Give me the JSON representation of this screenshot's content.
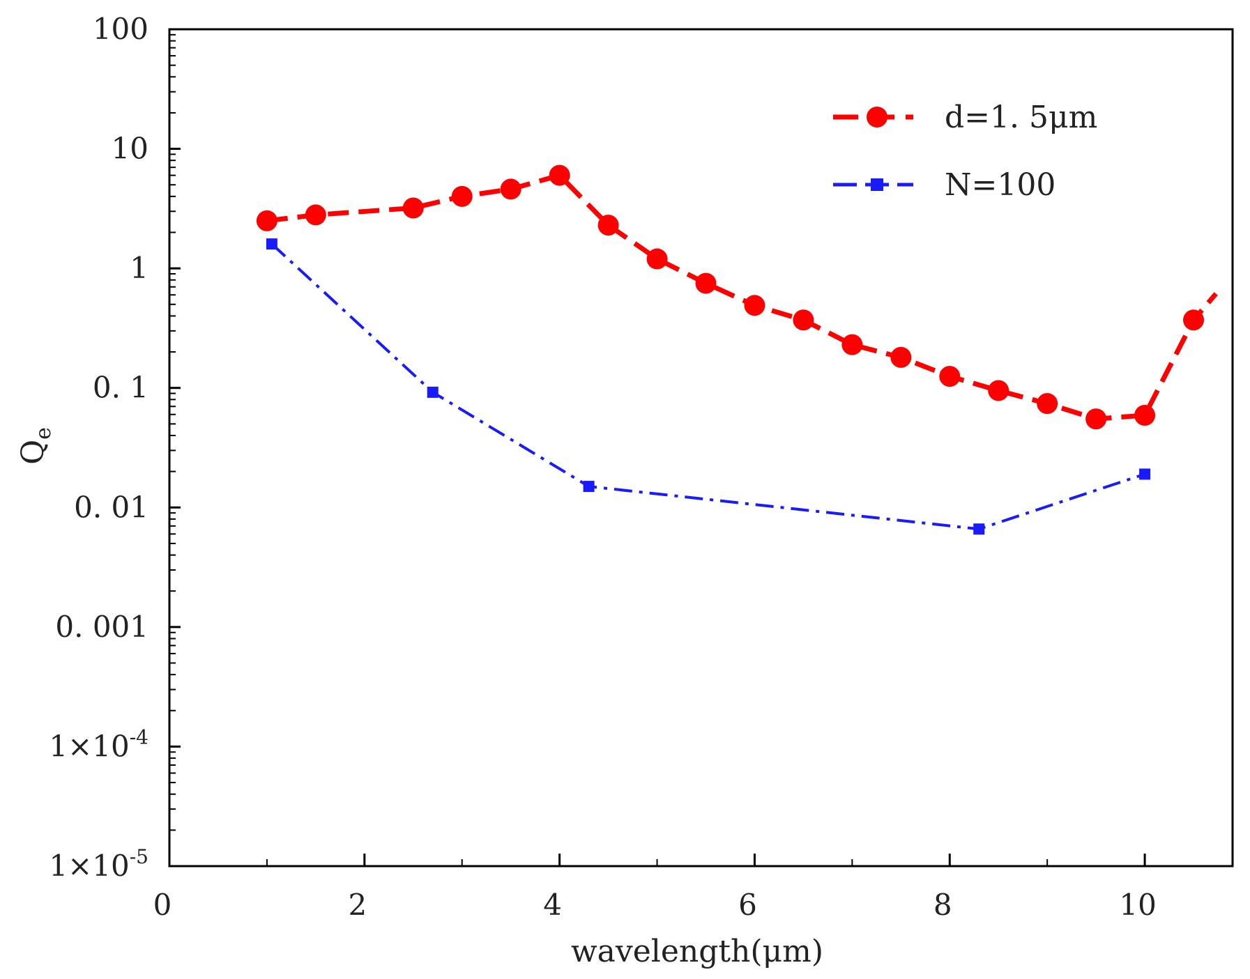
{
  "chart_data": {
    "type": "line",
    "title": "",
    "xlabel": "wavelength(μm)",
    "ylabel": "Q",
    "ylabel_subscript": "e",
    "xlim": [
      0,
      10.9
    ],
    "ylim": [
      1e-05,
      100
    ],
    "yscale": "log",
    "grid": false,
    "legend_position": "top-right",
    "x_ticks": [
      {
        "value": 0,
        "label": "0"
      },
      {
        "value": 2,
        "label": "2"
      },
      {
        "value": 4,
        "label": "4"
      },
      {
        "value": 6,
        "label": "6"
      },
      {
        "value": 8,
        "label": "8"
      },
      {
        "value": 10,
        "label": "10"
      }
    ],
    "y_ticks": [
      {
        "value": 100,
        "label": "100"
      },
      {
        "value": 10,
        "label": "10"
      },
      {
        "value": 1,
        "label": "1"
      },
      {
        "value": 0.1,
        "label": "0. 1"
      },
      {
        "value": 0.01,
        "label": "0. 01"
      },
      {
        "value": 0.001,
        "label": "0. 001"
      },
      {
        "value": 0.0001,
        "label": "1×10",
        "exponent": "-4"
      },
      {
        "value": 1e-05,
        "label": "1×10",
        "exponent": "-5"
      }
    ],
    "series": [
      {
        "name": "d=1. 5μm",
        "color": "#ff0000",
        "marker": "circle",
        "line_style": "dashed",
        "x": [
          1.0,
          1.5,
          2.5,
          3.0,
          3.5,
          4.0,
          4.5,
          5.0,
          5.5,
          6.0,
          6.5,
          7.0,
          7.5,
          8.0,
          8.5,
          9.0,
          9.5,
          10.0,
          10.5
        ],
        "y": [
          2.5,
          2.8,
          3.2,
          4.0,
          4.6,
          6.0,
          2.3,
          1.2,
          0.75,
          0.49,
          0.37,
          0.23,
          0.18,
          0.125,
          0.095,
          0.074,
          0.055,
          0.059,
          0.37
        ]
      },
      {
        "name": "N=100",
        "color": "#1a1aff",
        "marker": "square",
        "line_style": "dash-dot",
        "x": [
          1.05,
          2.7,
          4.3,
          8.3,
          10.0
        ],
        "y": [
          1.6,
          0.092,
          0.015,
          0.0066,
          0.019
        ]
      }
    ]
  }
}
